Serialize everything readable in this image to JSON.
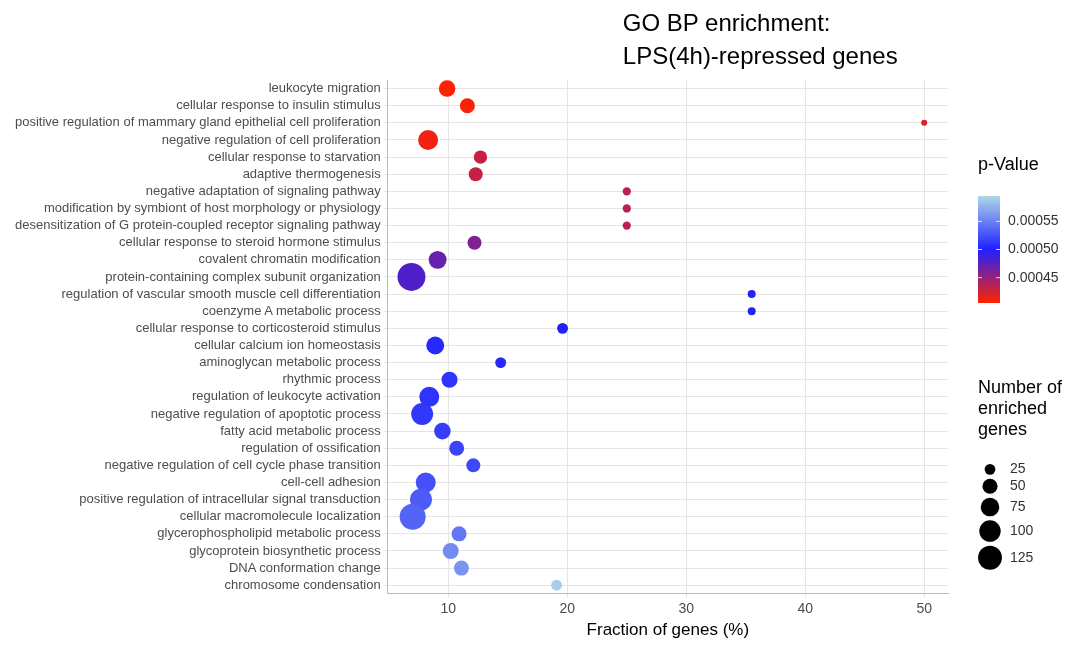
{
  "chart_data": {
    "type": "bubble",
    "title": "GO BP enrichment:\nLPS(4h)-repressed genes",
    "xlabel": "Fraction of genes (%)",
    "clabel": "p-Value",
    "legend_title": "Number of enriched genes",
    "categories": [
      "leukocyte migration",
      "cellular response to insulin stimulus",
      "positive regulation of mammary gland epithelial cell proliferation",
      "negative regulation of cell proliferation",
      "cellular response to starvation",
      "adaptive thermogenesis",
      "negative adaptation of signaling pathway",
      "modification by symbiont of host morphology or physiology",
      "desensitization of G protein-coupled receptor signaling pathway",
      "cellular response to steroid hormone stimulus",
      "covalent chromatin modification",
      "protein-containing complex subunit organization",
      "regulation of vascular smooth muscle cell differentiation",
      "coenzyme A metabolic process",
      "cellular response to corticosteroid stimulus",
      "cellular calcium ion homeostasis",
      "aminoglycan metabolic process",
      "rhythmic process",
      "regulation of leukocyte activation",
      "negative regulation of apoptotic process",
      "fatty acid metabolic process",
      "regulation of ossification",
      "negative regulation of cell cycle phase transition",
      "cell-cell adhesion",
      "positive regulation of intracellular signal transduction",
      "cellular macromolecule localization",
      "glycerophospholipid metabolic process",
      "glycoprotein biosynthetic process",
      "DNA conformation change",
      "chromosome condensation"
    ],
    "values": [
      9.9,
      11.6,
      50,
      8.3,
      12.7,
      12.3,
      25,
      25,
      25,
      12.2,
      9.1,
      6.9,
      35.5,
      35.5,
      19.6,
      8.9,
      14.4,
      10.1,
      8.4,
      7.8,
      9.5,
      10.7,
      12.1,
      8.1,
      7.7,
      7.0,
      10.9,
      10.2,
      11.1,
      19.1
    ],
    "sizes": [
      60,
      49,
      8,
      87,
      39,
      43,
      15,
      15,
      15,
      43,
      70,
      170,
      14,
      14,
      26,
      70,
      26,
      56,
      87,
      105,
      60,
      49,
      43,
      87,
      105,
      148,
      49,
      56,
      49,
      26
    ],
    "cvalues": [
      0.000406,
      0.000408,
      0.00042,
      0.000412,
      0.00043,
      0.00043,
      0.000435,
      0.000435,
      0.000435,
      0.00046,
      0.00047,
      0.00048,
      0.000498,
      0.000498,
      0.0005,
      0.000505,
      0.000505,
      0.00051,
      0.00051,
      0.000512,
      0.000515,
      0.000518,
      0.00052,
      0.000525,
      0.00053,
      0.000535,
      0.000545,
      0.000555,
      0.00056,
      0.00059
    ],
    "clim": [
      0.000405,
      0.000595
    ],
    "cticks": [
      {
        "value": 0.00045,
        "label": "0.00045"
      },
      {
        "value": 0.0005,
        "label": "0.00050"
      },
      {
        "value": 0.00055,
        "label": "0.00055"
      }
    ],
    "size_legend": [
      25,
      50,
      75,
      100,
      125
    ],
    "orientation": "horizontal",
    "xlim": [
      4.9,
      52
    ],
    "xticks": [
      10,
      20,
      30,
      40,
      50
    ],
    "grid": true
  }
}
